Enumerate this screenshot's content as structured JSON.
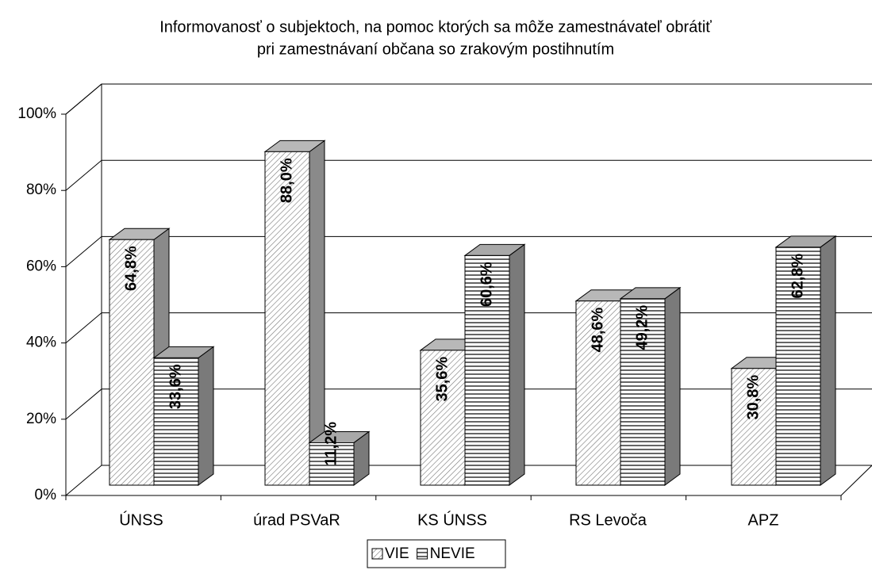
{
  "chart_data": {
    "type": "bar3d",
    "title": [
      "Informovanosť o subjektoch, na pomoc ktorých sa môže zamestnávateľ obrátiť",
      "pri zamestnávaní občana so zrakovým postihnutím"
    ],
    "categories": [
      "ÚNSS",
      "úrad PSVaR",
      "KS ÚNSS",
      "RS Levoča",
      "APZ"
    ],
    "series": [
      {
        "name": "VIE",
        "color": "#ffffff",
        "values": [
          64.8,
          88.0,
          35.6,
          48.6,
          30.8
        ],
        "value_labels": [
          "64,8%",
          "88,0%",
          "35,6%",
          "48,6%",
          "30,8%"
        ]
      },
      {
        "name": "NEVIE",
        "color": "#ffffff",
        "values": [
          33.6,
          11.2,
          60.6,
          49.2,
          62.8
        ],
        "value_labels": [
          "33,6%",
          "11,2%",
          "60,6%",
          "49,2%",
          "62,8%"
        ]
      }
    ],
    "ylim": [
      0,
      100
    ],
    "yticks": [
      {
        "value": 0,
        "label": "0%"
      },
      {
        "value": 20,
        "label": "20%"
      },
      {
        "value": 40,
        "label": "40%"
      },
      {
        "value": 60,
        "label": "60%"
      },
      {
        "value": 80,
        "label": "80%"
      },
      {
        "value": 100,
        "label": "100%"
      }
    ],
    "grid": true,
    "legend": "bottom"
  }
}
